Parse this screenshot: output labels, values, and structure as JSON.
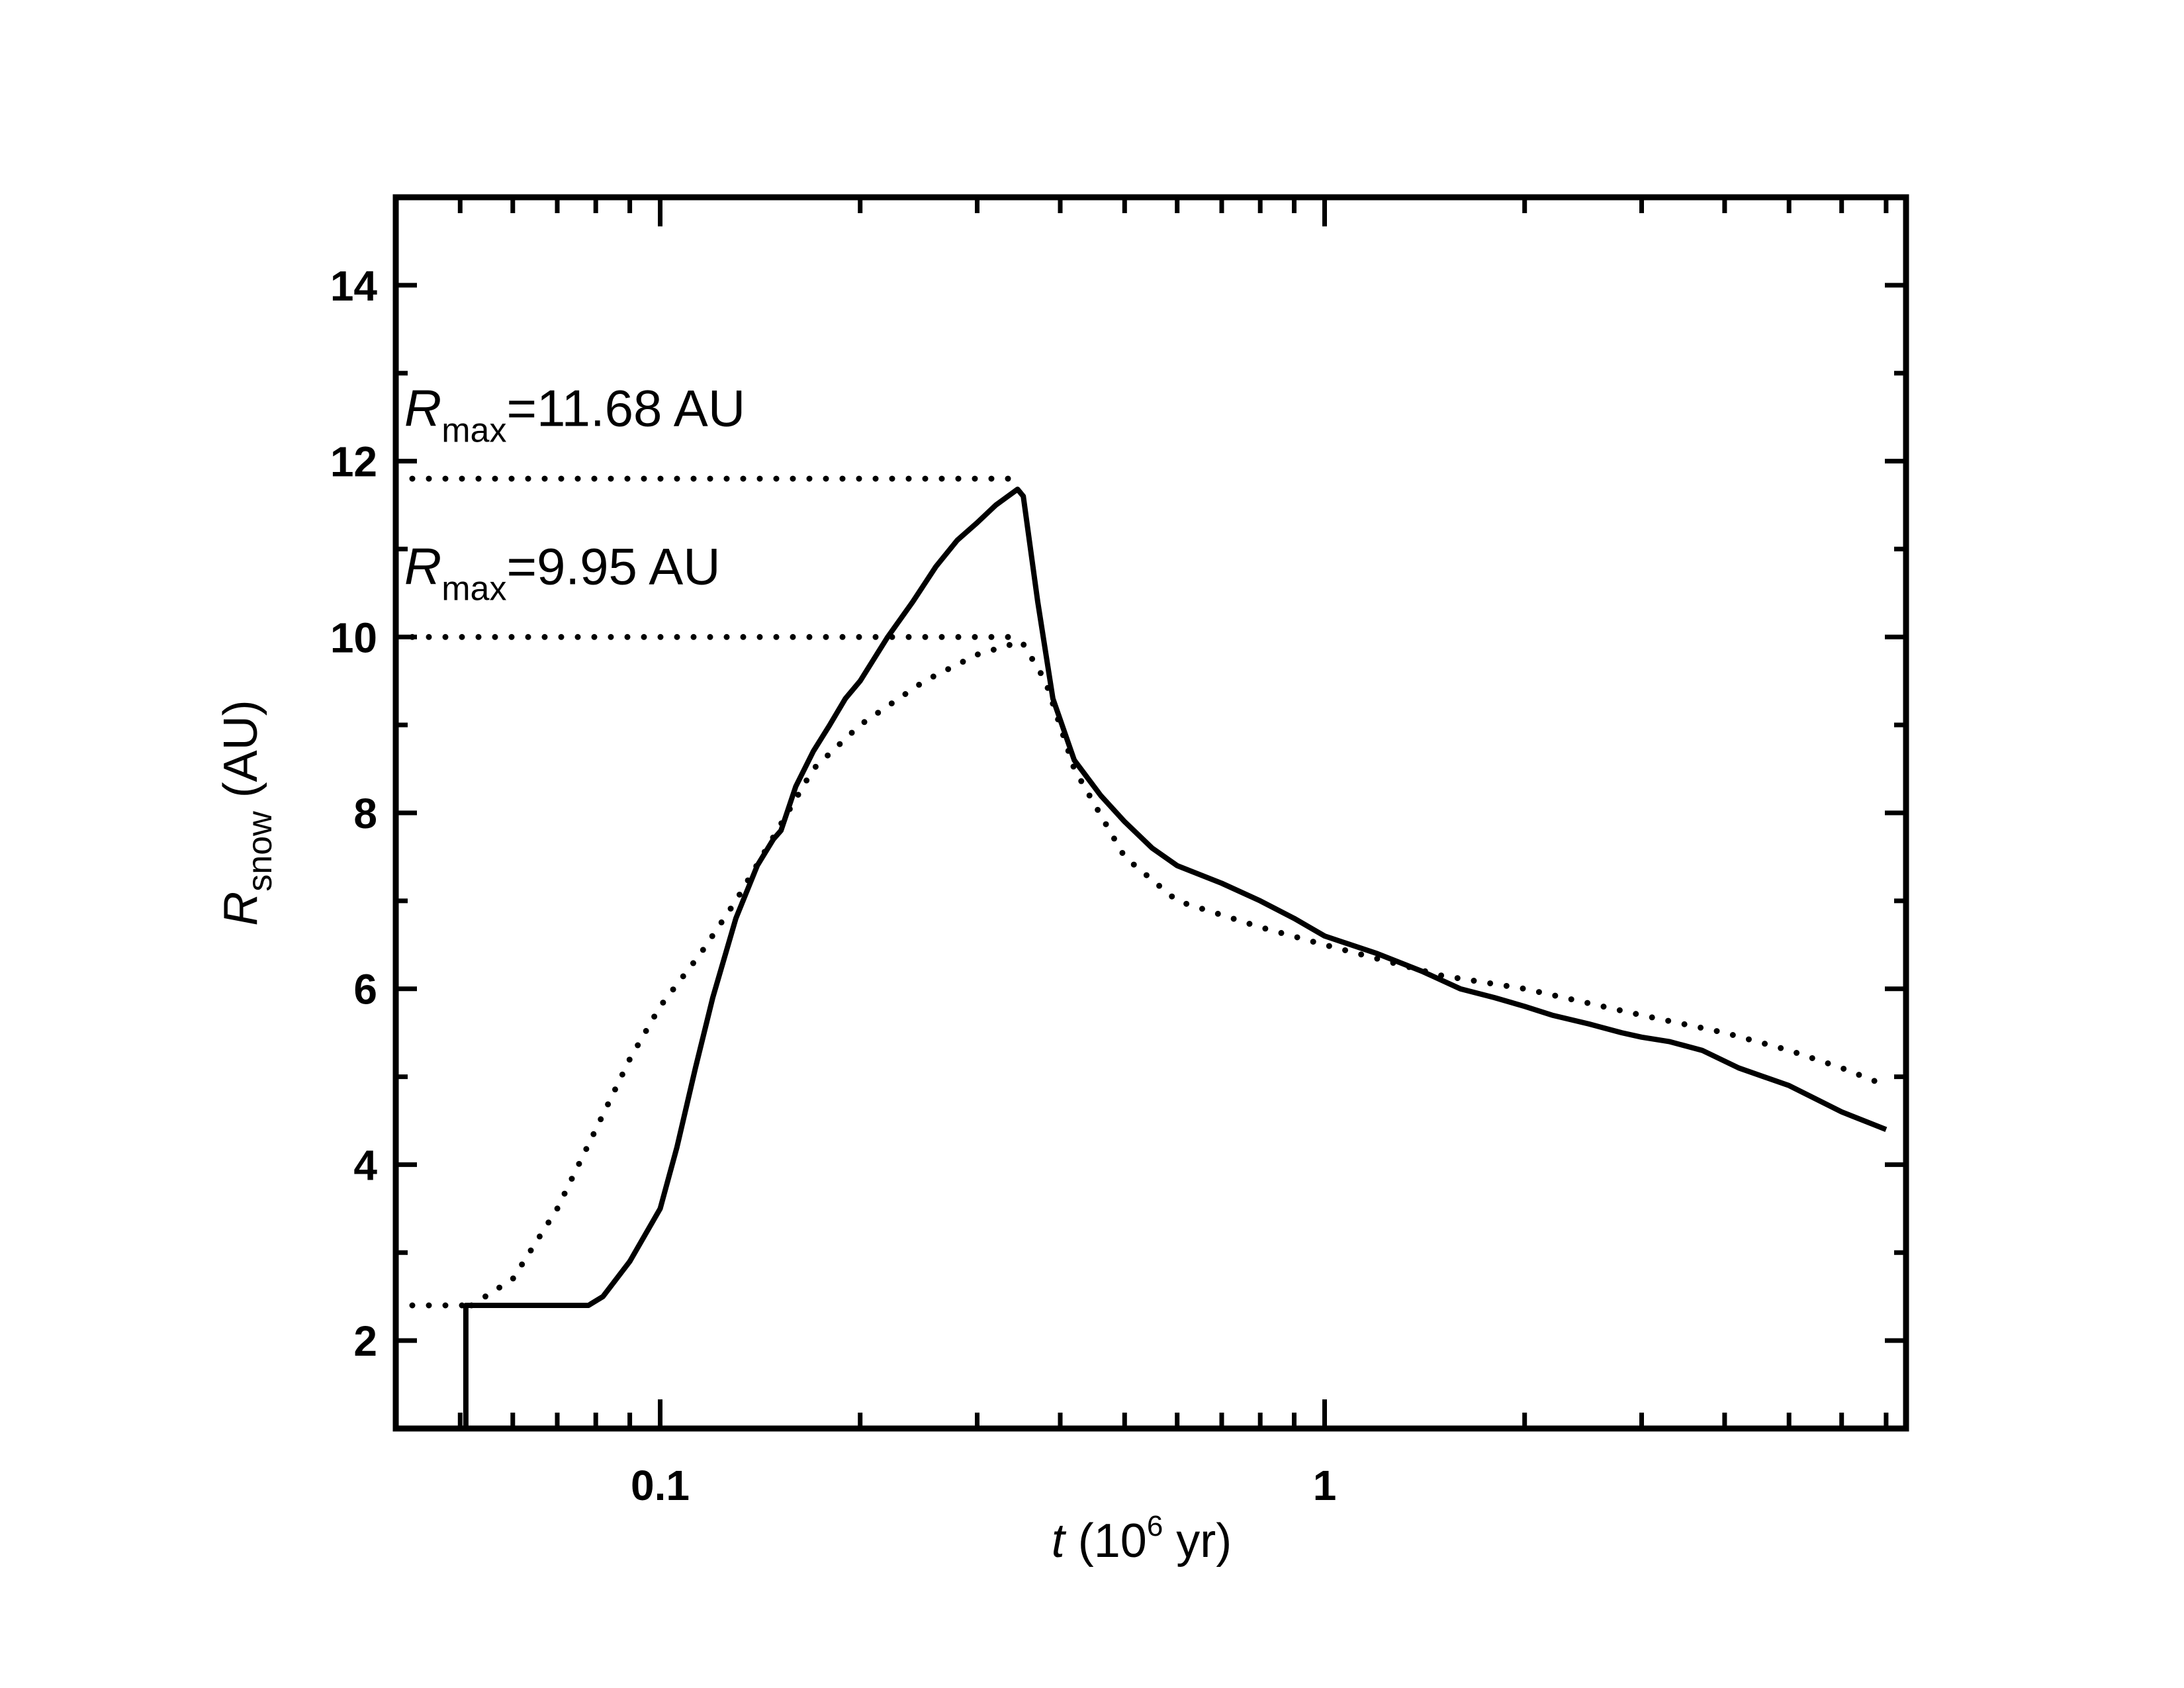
{
  "chart_data": {
    "type": "line",
    "xscale": "log",
    "xlim": [
      0.04,
      7.5
    ],
    "ylim": [
      1,
      15
    ],
    "xticks": [
      {
        "value": 0.1,
        "label": "0.1"
      },
      {
        "value": 1,
        "label": "1"
      }
    ],
    "yticks": [
      {
        "value": 2,
        "label": "2"
      },
      {
        "value": 4,
        "label": "4"
      },
      {
        "value": 6,
        "label": "6"
      },
      {
        "value": 8,
        "label": "8"
      },
      {
        "value": 10,
        "label": "10"
      },
      {
        "value": 12,
        "label": "12"
      },
      {
        "value": 14,
        "label": "14"
      }
    ],
    "xlabel": {
      "italic": "t",
      "main": " (10",
      "sup": "6",
      "end": " yr)"
    },
    "ylabel": {
      "italic": "R",
      "sub": "snow",
      "end": " (AU)"
    },
    "annotations": [
      {
        "italic": "R",
        "sub": "max",
        "text": "=11.68 AU",
        "at": [
          0.0412,
          12.4
        ]
      },
      {
        "italic": "R",
        "sub": "max",
        "text": "=9.95 AU",
        "at": [
          0.0412,
          10.6
        ]
      }
    ],
    "reference_lines": [
      {
        "style": "dotted",
        "y": 11.8,
        "x": [
          0.04,
          0.35
        ]
      },
      {
        "style": "dotted",
        "y": 10.0,
        "x": [
          0.04,
          0.35
        ]
      },
      {
        "style": "dotted",
        "y": 2.4,
        "x": [
          0.04,
          0.052
        ]
      }
    ],
    "series": [
      {
        "style": "solid",
        "x": [
          0.051,
          0.051,
          0.054,
          0.07,
          0.078,
          0.082,
          0.09,
          0.1,
          0.106,
          0.113,
          0.12,
          0.13,
          0.14,
          0.148,
          0.152,
          0.16,
          0.17,
          0.18,
          0.19,
          0.2,
          0.22,
          0.24,
          0.26,
          0.28,
          0.3,
          0.32,
          0.345,
          0.352,
          0.37,
          0.39,
          0.42,
          0.46,
          0.5,
          0.55,
          0.6,
          0.7,
          0.8,
          0.9,
          1.0,
          1.2,
          1.4,
          1.6,
          1.8,
          2.0,
          2.2,
          2.5,
          2.8,
          3.0,
          3.3,
          3.7,
          4.2,
          5.0,
          6.0,
          7.0
        ],
        "y": [
          1.0,
          2.4,
          2.4,
          2.4,
          2.4,
          2.5,
          2.9,
          3.5,
          4.2,
          5.1,
          5.9,
          6.8,
          7.4,
          7.7,
          7.8,
          8.3,
          8.7,
          9.0,
          9.3,
          9.5,
          10.0,
          10.4,
          10.8,
          11.1,
          11.3,
          11.5,
          11.68,
          11.6,
          10.4,
          9.3,
          8.6,
          8.2,
          7.9,
          7.6,
          7.4,
          7.2,
          7.0,
          6.8,
          6.6,
          6.4,
          6.2,
          6.0,
          5.9,
          5.8,
          5.7,
          5.6,
          5.5,
          5.45,
          5.4,
          5.3,
          5.1,
          4.9,
          4.6,
          4.4
        ]
      },
      {
        "style": "dotted",
        "x": [
          0.052,
          0.06,
          0.07,
          0.08,
          0.09,
          0.1,
          0.115,
          0.13,
          0.15,
          0.17,
          0.2,
          0.25,
          0.3,
          0.35,
          0.38,
          0.42,
          0.5,
          0.6,
          0.8,
          1.0,
          1.5,
          2.0,
          3.0,
          4.0,
          5.0,
          6.0,
          7.0
        ],
        "y": [
          2.4,
          2.7,
          3.5,
          4.4,
          5.2,
          5.8,
          6.4,
          7.0,
          7.8,
          8.5,
          9.0,
          9.5,
          9.8,
          9.95,
          9.5,
          8.5,
          7.5,
          7.0,
          6.7,
          6.5,
          6.15,
          6.0,
          5.7,
          5.5,
          5.3,
          5.1,
          4.9
        ]
      }
    ]
  }
}
